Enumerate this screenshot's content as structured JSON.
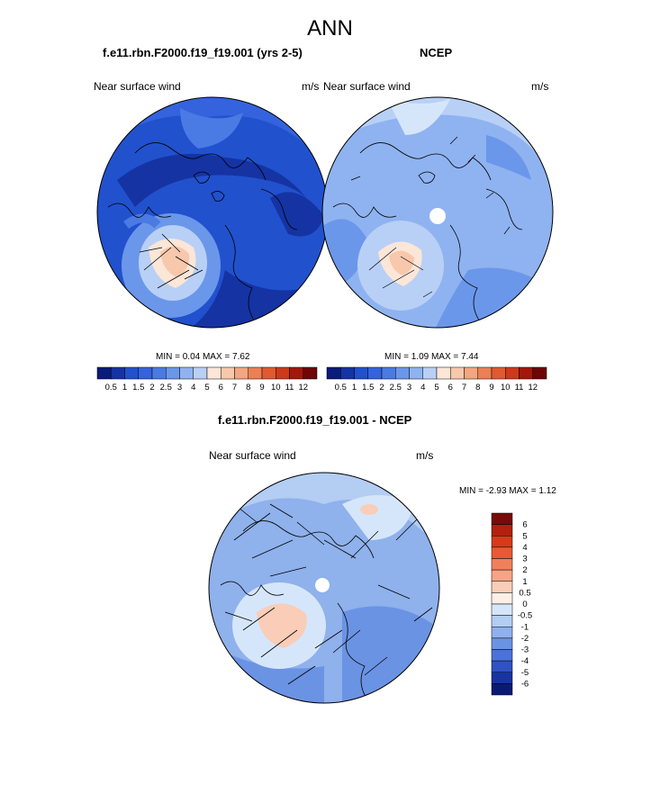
{
  "page": {
    "title": "ANN"
  },
  "panels": [
    {
      "id": "model",
      "title": "f.e11.rbn.F2000.f19_f19.001 (yrs 2-5)",
      "left_label": "Near surface wind",
      "right_label": "m/s",
      "stats": "MIN =   0.04 MAX =   7.62"
    },
    {
      "id": "obs",
      "title": "NCEP",
      "left_label": "Near surface wind",
      "right_label": "m/s",
      "stats": "MIN =   1.09 MAX =   7.44"
    },
    {
      "id": "diff",
      "title": "f.e11.rbn.F2000.f19_f19.001 - NCEP",
      "left_label": "Near surface wind",
      "right_label": "m/s",
      "stats": "MIN =  -2.93 MAX =   1.12"
    }
  ],
  "colorbars": {
    "abs": {
      "labels": [
        "0.5",
        "1",
        "1.5",
        "2",
        "2.5",
        "3",
        "4",
        "5",
        "6",
        "7",
        "8",
        "9",
        "10",
        "11",
        "12"
      ],
      "colors": [
        "#0a1b7a",
        "#1533a3",
        "#2151cd",
        "#3463dd",
        "#4a7ae3",
        "#6b97ea",
        "#8fb3f0",
        "#b8d0f6",
        "#fbe6d8",
        "#f8c8ac",
        "#f3a680",
        "#ec7f54",
        "#e05a30",
        "#cc3a1b",
        "#a3180c",
        "#6e0506"
      ]
    },
    "diff": {
      "labels": [
        "6",
        "5",
        "4",
        "3",
        "2",
        "1",
        "0.5",
        "0",
        "-0.5",
        "-1",
        "-2",
        "-3",
        "-4",
        "-5",
        "-6"
      ],
      "colors": [
        "#7a0a08",
        "#b3200e",
        "#d63a1b",
        "#e85a30",
        "#f0805c",
        "#f5a585",
        "#f9cdb7",
        "#fdeee6",
        "#d6e6fa",
        "#b3cdf3",
        "#8fb1ec",
        "#6b93e4",
        "#4a73d9",
        "#2f53c4",
        "#1734a1",
        "#0a1a74"
      ]
    }
  },
  "chart_data": [
    {
      "type": "heatmap",
      "title": "f.e11.rbn.F2000.f19_f19.001 (yrs 2-5)",
      "variable": "Near surface wind",
      "units": "m/s",
      "min": 0.04,
      "max": 7.62,
      "levels": [
        0.5,
        1,
        1.5,
        2,
        2.5,
        3,
        4,
        5,
        6,
        7,
        8,
        9,
        10,
        11,
        12
      ]
    },
    {
      "type": "heatmap",
      "title": "NCEP",
      "variable": "Near surface wind",
      "units": "m/s",
      "min": 1.09,
      "max": 7.44,
      "levels": [
        0.5,
        1,
        1.5,
        2,
        2.5,
        3,
        4,
        5,
        6,
        7,
        8,
        9,
        10,
        11,
        12
      ]
    },
    {
      "type": "heatmap",
      "title": "f.e11.rbn.F2000.f19_f19.001 - NCEP",
      "variable": "Near surface wind",
      "units": "m/s",
      "min": -2.93,
      "max": 1.12,
      "levels": [
        6,
        5,
        4,
        3,
        2,
        1,
        0.5,
        0,
        -0.5,
        -1,
        -2,
        -3,
        -4,
        -5,
        -6
      ]
    }
  ]
}
